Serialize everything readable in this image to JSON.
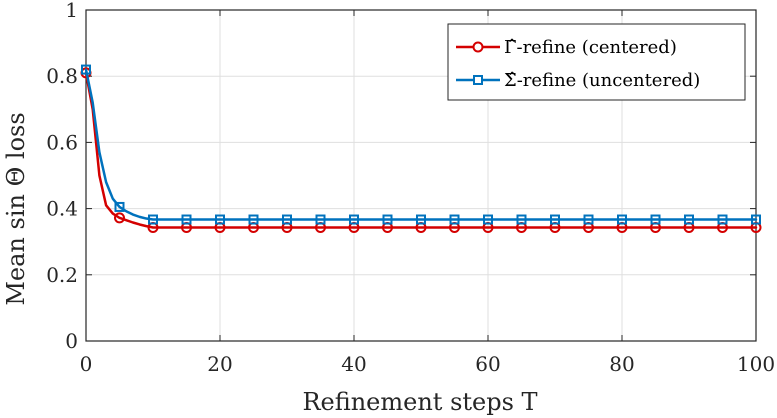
{
  "chart_data": {
    "type": "line",
    "xlabel": "Refinement steps T",
    "ylabel": "Mean sin Θ loss",
    "xlim": [
      0,
      100
    ],
    "ylim": [
      0,
      1
    ],
    "xticks": [
      0,
      20,
      40,
      60,
      80,
      100
    ],
    "yticks": [
      0,
      0.2,
      0.4,
      0.6,
      0.8,
      1
    ],
    "ytick_labels": [
      "0",
      "0.2",
      "0.4",
      "0.6",
      "0.8",
      "1"
    ],
    "grid": true,
    "legend_position": "top-right",
    "series": [
      {
        "name": "Γ̂-refine (centered)",
        "color": "#d40000",
        "marker": "circle",
        "x": [
          0,
          1,
          2,
          3,
          4,
          5,
          6,
          7,
          8,
          9,
          10,
          15,
          20,
          25,
          30,
          35,
          40,
          45,
          50,
          55,
          60,
          65,
          70,
          75,
          80,
          85,
          90,
          95,
          100
        ],
        "y": [
          0.81,
          0.7,
          0.5,
          0.41,
          0.385,
          0.372,
          0.365,
          0.358,
          0.352,
          0.347,
          0.343,
          0.343,
          0.343,
          0.343,
          0.343,
          0.343,
          0.343,
          0.343,
          0.343,
          0.343,
          0.343,
          0.343,
          0.343,
          0.343,
          0.343,
          0.343,
          0.343,
          0.343,
          0.343
        ],
        "marker_x": [
          0,
          5,
          10,
          15,
          20,
          25,
          30,
          35,
          40,
          45,
          50,
          55,
          60,
          65,
          70,
          75,
          80,
          85,
          90,
          95,
          100
        ]
      },
      {
        "name": "Σ̂-refine (uncentered)",
        "color": "#0072bd",
        "marker": "square",
        "x": [
          0,
          1,
          2,
          3,
          4,
          5,
          6,
          7,
          8,
          9,
          10,
          15,
          20,
          25,
          30,
          35,
          40,
          45,
          50,
          55,
          60,
          65,
          70,
          75,
          80,
          85,
          90,
          95,
          100
        ],
        "y": [
          0.82,
          0.72,
          0.57,
          0.48,
          0.43,
          0.405,
          0.392,
          0.382,
          0.375,
          0.37,
          0.367,
          0.367,
          0.367,
          0.367,
          0.367,
          0.367,
          0.367,
          0.367,
          0.367,
          0.367,
          0.367,
          0.367,
          0.367,
          0.367,
          0.367,
          0.367,
          0.367,
          0.367,
          0.367
        ],
        "marker_x": [
          0,
          5,
          10,
          15,
          20,
          25,
          30,
          35,
          40,
          45,
          50,
          55,
          60,
          65,
          70,
          75,
          80,
          85,
          90,
          95,
          100
        ]
      }
    ]
  }
}
